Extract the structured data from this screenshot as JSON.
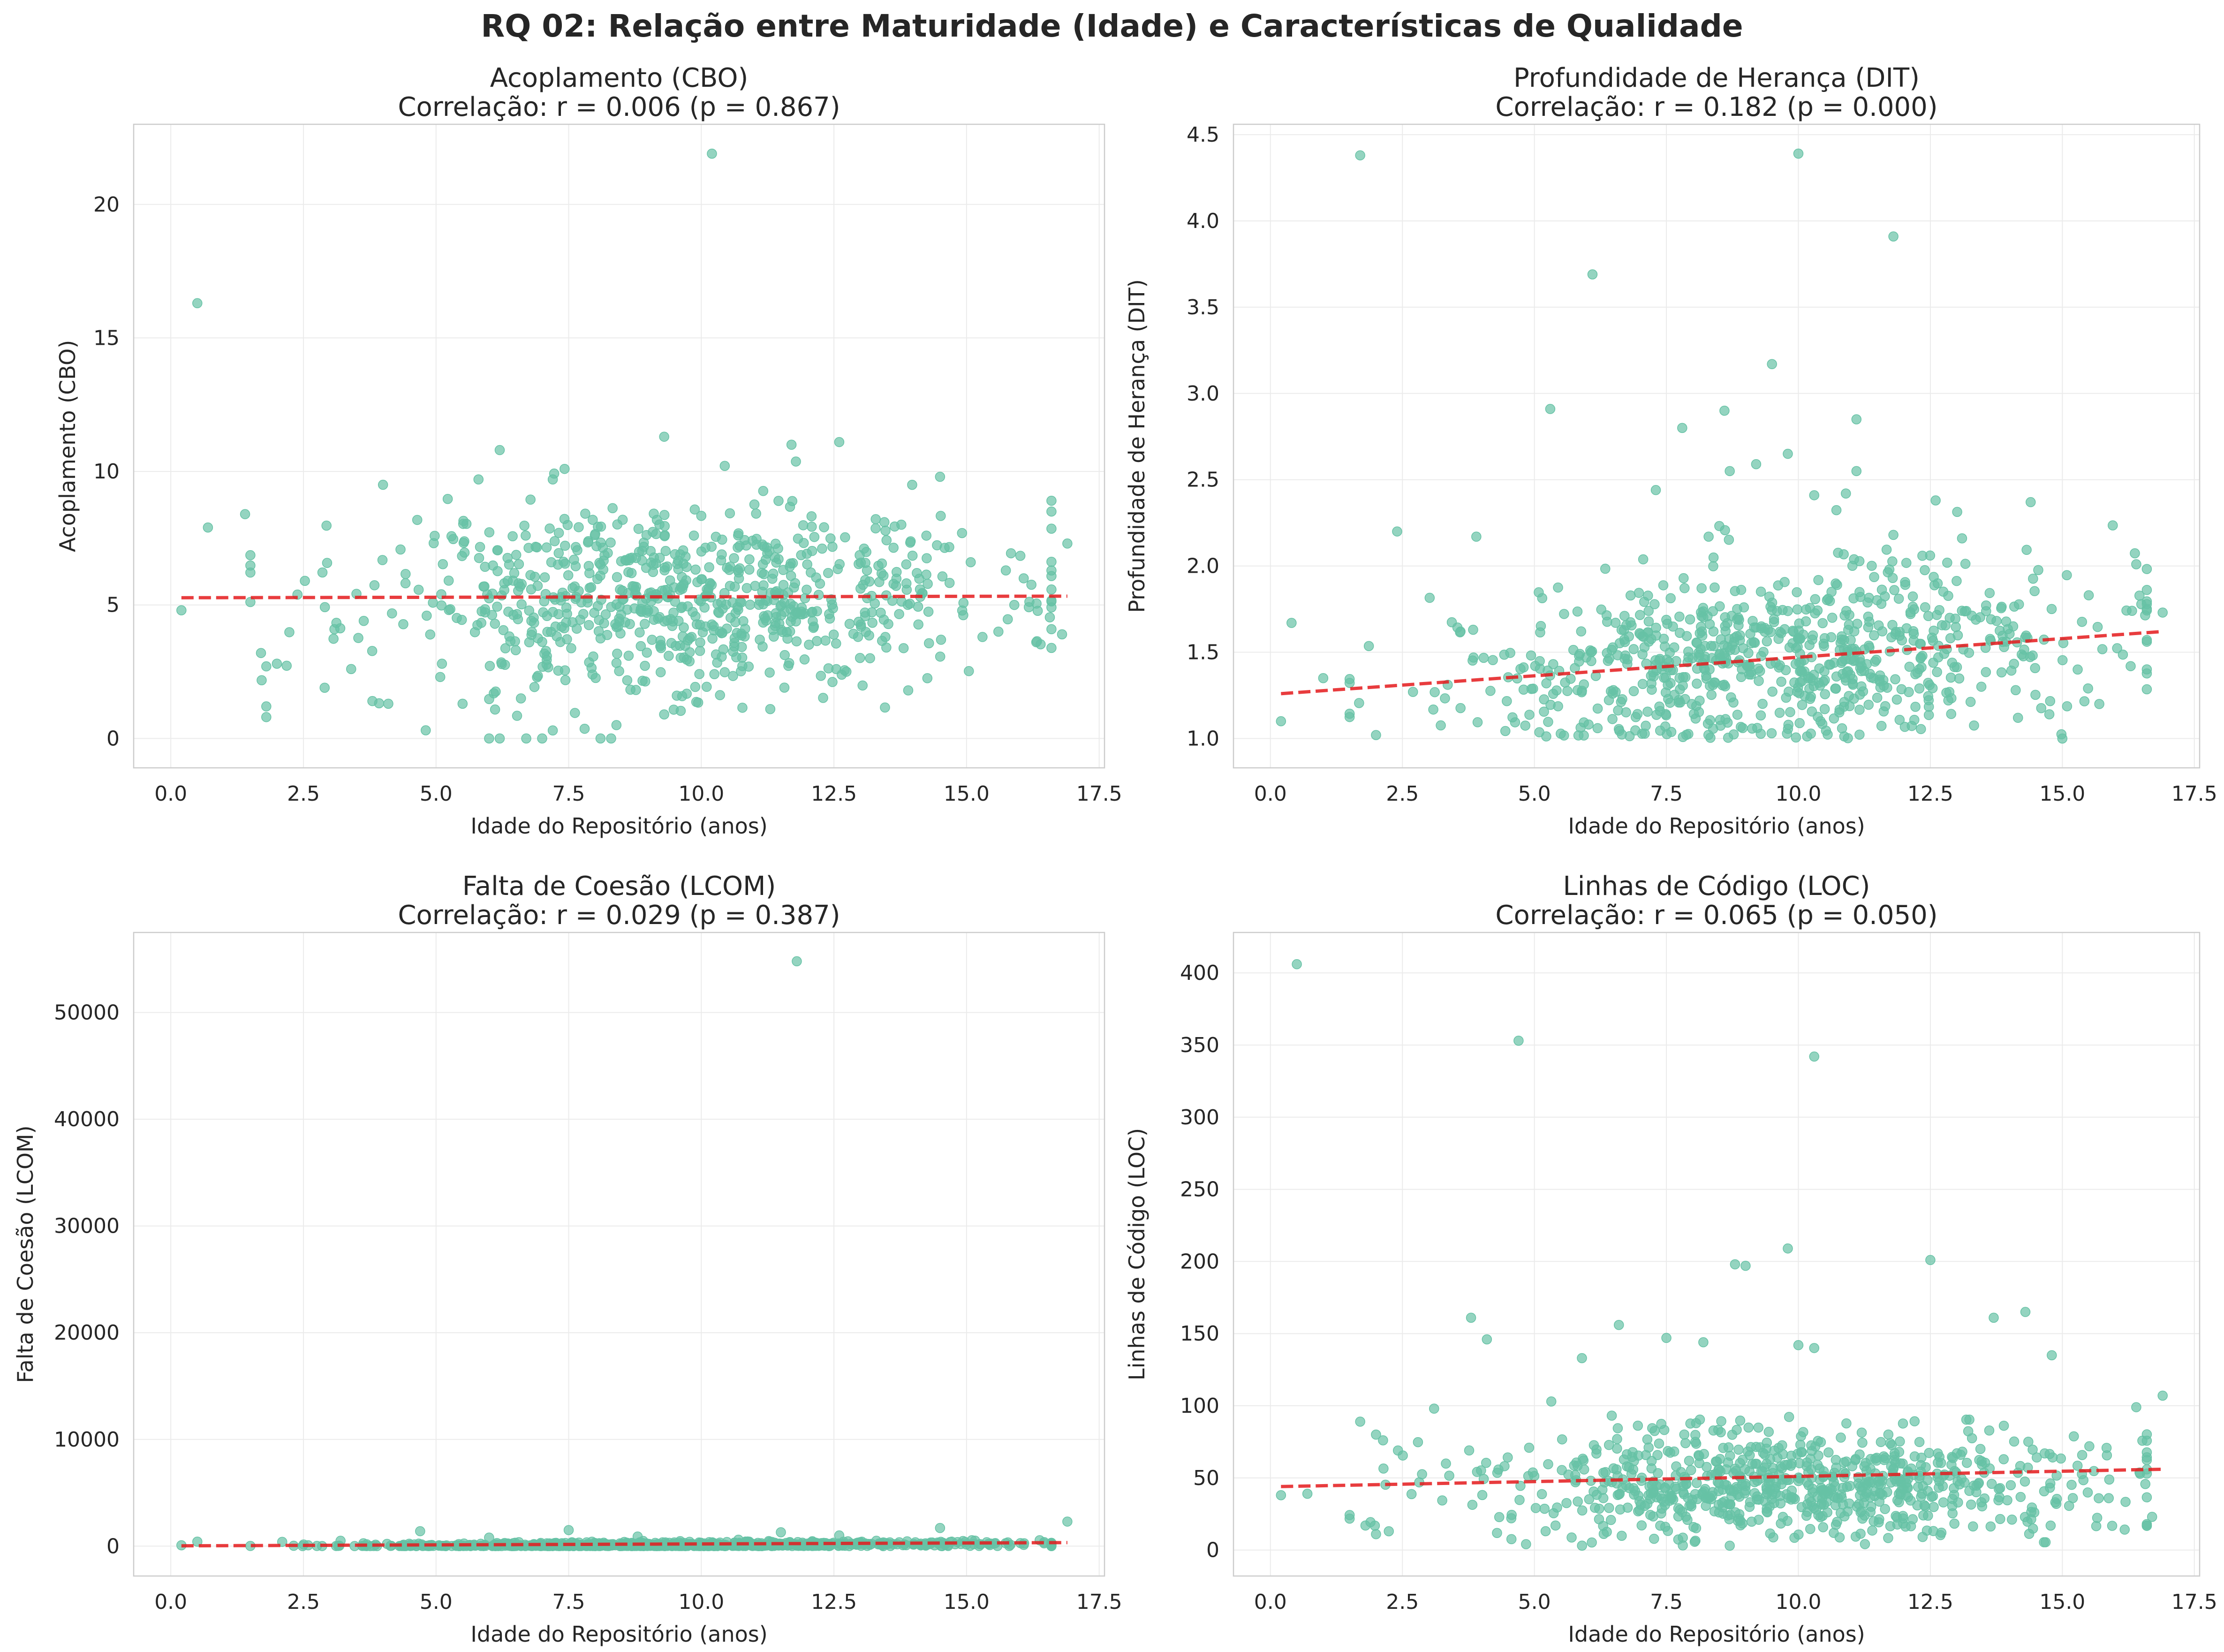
{
  "figure": {
    "title": "RQ 02: Relação entre Maturidade (Idade) e Características de Qualidade"
  },
  "colors": {
    "point": "#66c2a5",
    "trend": "#e41a1c",
    "grid": "#ebebeb",
    "spine": "#cccccc",
    "text": "#262626"
  },
  "chart_data": [
    {
      "type": "scatter",
      "id": "cbo",
      "title": "Acoplamento (CBO)",
      "subtitle": "Correlação: r = 0.006 (p = 0.867)",
      "xlabel": "Idade do Repositório (anos)",
      "ylabel": "Acoplamento (CBO)",
      "xlim": [
        -0.7,
        17.6
      ],
      "ylim": [
        -1.1,
        23.0
      ],
      "xticks": [
        0.0,
        2.5,
        5.0,
        7.5,
        10.0,
        12.5,
        15.0,
        17.5
      ],
      "xtick_labels": [
        "0.0",
        "2.5",
        "5.0",
        "7.5",
        "10.0",
        "12.5",
        "15.0",
        "17.5"
      ],
      "yticks": [
        0,
        5,
        10,
        15,
        20
      ],
      "ytick_labels": [
        "0",
        "5",
        "10",
        "15",
        "20"
      ],
      "grid": true,
      "trend": {
        "style": "dashed",
        "x": [
          0.2,
          16.9
        ],
        "y": [
          5.27,
          5.33
        ]
      },
      "sample": {
        "n": 780,
        "x_mean": 9.8,
        "x_sd": 3.0,
        "y_mean": 5.3,
        "y_sd": 1.8,
        "y_min": 0,
        "slope": 0.004,
        "seed": 11
      },
      "points": [
        [
          0.2,
          4.8
        ],
        [
          0.5,
          16.3
        ],
        [
          10.2,
          21.9
        ],
        [
          9.3,
          11.3
        ],
        [
          12.6,
          11.1
        ],
        [
          11.7,
          11.0
        ],
        [
          4.0,
          9.5
        ],
        [
          14.5,
          9.8
        ],
        [
          6.2,
          10.8
        ],
        [
          5.8,
          9.7
        ],
        [
          7.2,
          9.7
        ],
        [
          1.4,
          8.4
        ],
        [
          0.7,
          7.9
        ],
        [
          1.7,
          3.2
        ],
        [
          1.8,
          2.7
        ],
        [
          1.8,
          1.2
        ],
        [
          1.8,
          0.8
        ],
        [
          2.0,
          2.8
        ],
        [
          3.4,
          2.6
        ],
        [
          2.9,
          1.9
        ],
        [
          3.8,
          1.4
        ],
        [
          4.1,
          1.3
        ],
        [
          6.0,
          0.0
        ],
        [
          6.2,
          0.0
        ],
        [
          6.7,
          0.0
        ],
        [
          7.0,
          0.0
        ],
        [
          7.2,
          0.3
        ],
        [
          8.1,
          0.0
        ],
        [
          8.3,
          0.0
        ],
        [
          8.4,
          0.5
        ],
        [
          5.5,
          1.3
        ],
        [
          6.6,
          1.5
        ],
        [
          9.3,
          0.9
        ],
        [
          11.3,
          1.1
        ],
        [
          13.9,
          1.8
        ],
        [
          16.8,
          3.9
        ],
        [
          16.9,
          7.3
        ],
        [
          15.9,
          5.0
        ],
        [
          15.6,
          4.0
        ],
        [
          15.3,
          3.8
        ]
      ]
    },
    {
      "type": "scatter",
      "id": "dit",
      "title": "Profundidade de Herança (DIT)",
      "subtitle": "Correlação: r = 0.182 (p = 0.000)",
      "xlabel": "Idade do Repositório (anos)",
      "ylabel": "Profundidade de Herança (DIT)",
      "xlim": [
        -0.7,
        17.6
      ],
      "ylim": [
        0.83,
        4.56
      ],
      "xticks": [
        0.0,
        2.5,
        5.0,
        7.5,
        10.0,
        12.5,
        15.0,
        17.5
      ],
      "xtick_labels": [
        "0.0",
        "2.5",
        "5.0",
        "7.5",
        "10.0",
        "12.5",
        "15.0",
        "17.5"
      ],
      "yticks": [
        1.0,
        1.5,
        2.0,
        2.5,
        3.0,
        3.5,
        4.0,
        4.5
      ],
      "ytick_labels": [
        "1.0",
        "1.5",
        "2.0",
        "2.5",
        "3.0",
        "3.5",
        "4.0",
        "4.5"
      ],
      "grid": true,
      "trend": {
        "style": "dashed",
        "x": [
          0.2,
          16.9
        ],
        "y": [
          1.26,
          1.62
        ]
      },
      "sample": {
        "n": 780,
        "x_mean": 9.8,
        "x_sd": 3.0,
        "y_mean": 1.45,
        "y_sd": 0.25,
        "y_min": 1.0,
        "slope": 0.022,
        "seed": 23
      },
      "points": [
        [
          1.7,
          4.38
        ],
        [
          10.0,
          4.39
        ],
        [
          11.8,
          3.91
        ],
        [
          6.1,
          3.69
        ],
        [
          9.5,
          3.17
        ],
        [
          5.3,
          2.91
        ],
        [
          8.6,
          2.9
        ],
        [
          11.1,
          2.85
        ],
        [
          7.8,
          2.8
        ],
        [
          9.8,
          2.65
        ],
        [
          8.7,
          2.55
        ],
        [
          9.2,
          2.59
        ],
        [
          11.1,
          2.55
        ],
        [
          7.3,
          2.44
        ],
        [
          10.3,
          2.41
        ],
        [
          12.6,
          2.38
        ],
        [
          14.4,
          2.37
        ],
        [
          10.9,
          2.42
        ],
        [
          2.4,
          2.2
        ],
        [
          3.9,
          2.17
        ],
        [
          8.3,
          2.17
        ],
        [
          13.1,
          2.16
        ],
        [
          11.8,
          2.18
        ],
        [
          16.4,
          2.01
        ],
        [
          16.9,
          1.73
        ],
        [
          15.5,
          1.83
        ],
        [
          15.7,
          1.2
        ],
        [
          15.0,
          1.0
        ],
        [
          0.2,
          1.1
        ],
        [
          0.4,
          1.67
        ],
        [
          1.0,
          1.35
        ],
        [
          2.0,
          1.02
        ],
        [
          2.7,
          1.27
        ],
        [
          3.6,
          1.62
        ]
      ]
    },
    {
      "type": "scatter",
      "id": "lcom",
      "title": "Falta de Coesão (LCOM)",
      "subtitle": "Correlação: r = 0.029 (p = 0.387)",
      "xlabel": "Idade do Repositório (anos)",
      "ylabel": "Falta de Coesão (LCOM)",
      "xlim": [
        -0.7,
        17.6
      ],
      "ylim": [
        -2800,
        57500
      ],
      "xticks": [
        0.0,
        2.5,
        5.0,
        7.5,
        10.0,
        12.5,
        15.0,
        17.5
      ],
      "xtick_labels": [
        "0.0",
        "2.5",
        "5.0",
        "7.5",
        "10.0",
        "12.5",
        "15.0",
        "17.5"
      ],
      "yticks": [
        0,
        10000,
        20000,
        30000,
        40000,
        50000
      ],
      "ytick_labels": [
        "0",
        "10000",
        "20000",
        "30000",
        "40000",
        "50000"
      ],
      "grid": true,
      "trend": {
        "style": "dashed",
        "x": [
          0.2,
          16.9
        ],
        "y": [
          30,
          330
        ]
      },
      "sample": {
        "n": 780,
        "x_mean": 9.8,
        "x_sd": 3.0,
        "y_mean": 110,
        "y_sd": 140,
        "y_min": 0,
        "slope": 18,
        "seed": 37
      },
      "points": [
        [
          11.8,
          54800
        ],
        [
          16.9,
          2300
        ],
        [
          14.5,
          1700
        ],
        [
          7.5,
          1500
        ],
        [
          4.7,
          1400
        ],
        [
          11.5,
          1300
        ],
        [
          12.6,
          1000
        ],
        [
          8.8,
          900
        ],
        [
          6.0,
          800
        ],
        [
          10.7,
          600
        ],
        [
          13.3,
          500
        ],
        [
          15.1,
          550
        ],
        [
          3.2,
          500
        ],
        [
          2.1,
          400
        ],
        [
          0.5,
          420
        ],
        [
          0.2,
          80
        ]
      ]
    },
    {
      "type": "scatter",
      "id": "loc",
      "title": "Linhas de Código (LOC)",
      "subtitle": "Correlação: r = 0.065 (p = 0.050)",
      "xlabel": "Idade do Repositório (anos)",
      "ylabel": "Linhas de Código (LOC)",
      "xlim": [
        -0.7,
        17.6
      ],
      "ylim": [
        -18,
        428
      ],
      "xticks": [
        0.0,
        2.5,
        5.0,
        7.5,
        10.0,
        12.5,
        15.0,
        17.5
      ],
      "xtick_labels": [
        "0.0",
        "2.5",
        "5.0",
        "7.5",
        "10.0",
        "12.5",
        "15.0",
        "17.5"
      ],
      "yticks": [
        0,
        50,
        100,
        150,
        200,
        250,
        300,
        350,
        400
      ],
      "ytick_labels": [
        "0",
        "50",
        "100",
        "150",
        "200",
        "250",
        "300",
        "350",
        "400"
      ],
      "grid": true,
      "trend": {
        "style": "dashed",
        "x": [
          0.2,
          16.9
        ],
        "y": [
          44,
          56
        ]
      },
      "sample": {
        "n": 780,
        "x_mean": 9.8,
        "x_sd": 3.0,
        "y_mean": 47,
        "y_sd": 20,
        "y_min": 3,
        "slope": 0.7,
        "seed": 53
      },
      "points": [
        [
          0.5,
          406
        ],
        [
          4.7,
          353
        ],
        [
          10.3,
          342
        ],
        [
          9.8,
          209
        ],
        [
          12.5,
          201
        ],
        [
          8.8,
          198
        ],
        [
          9.0,
          197
        ],
        [
          14.3,
          165
        ],
        [
          3.8,
          161
        ],
        [
          13.7,
          161
        ],
        [
          6.6,
          156
        ],
        [
          7.5,
          147
        ],
        [
          8.2,
          144
        ],
        [
          4.1,
          146
        ],
        [
          10.0,
          142
        ],
        [
          10.3,
          140
        ],
        [
          14.8,
          135
        ],
        [
          5.9,
          133
        ],
        [
          16.9,
          107
        ],
        [
          16.4,
          99
        ],
        [
          3.1,
          98
        ],
        [
          1.7,
          89
        ],
        [
          2.0,
          80
        ],
        [
          0.2,
          38
        ],
        [
          0.7,
          39
        ],
        [
          1.8,
          17
        ],
        [
          2.0,
          11
        ],
        [
          5.4,
          17
        ],
        [
          16.7,
          23
        ],
        [
          8.7,
          3
        ]
      ]
    }
  ]
}
